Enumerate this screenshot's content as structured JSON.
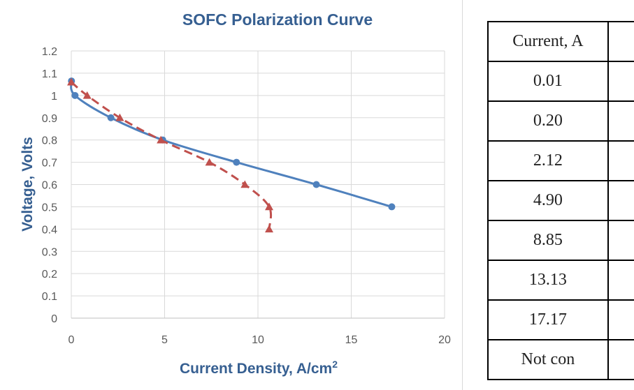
{
  "chart_data": {
    "type": "line",
    "title": "SOFC Polarization Curve",
    "xlabel": "Current Density, A/cm",
    "xlabel_superscript": "2",
    "ylabel": "Voltage, Volts",
    "xlim": [
      0,
      20
    ],
    "ylim": [
      0,
      1.2
    ],
    "x_ticks": [
      "0",
      "5",
      "10",
      "15",
      "20"
    ],
    "y_ticks": [
      "0",
      "0.1",
      "0.2",
      "0.3",
      "0.4",
      "0.5",
      "0.6",
      "0.7",
      "0.8",
      "0.9",
      "1",
      "1.1",
      "1.2"
    ],
    "grid": true,
    "series": [
      {
        "color": "#4f81bd",
        "marker": "circle",
        "line_style": "solid",
        "x": [
          0.01,
          0.2,
          2.12,
          4.9,
          8.85,
          13.13,
          17.17
        ],
        "y": [
          1.065,
          1.0,
          0.9,
          0.8,
          0.7,
          0.6,
          0.5
        ]
      },
      {
        "color": "#c0504d",
        "marker": "triangle",
        "line_style": "dashed",
        "x": [
          0.0,
          0.85,
          2.6,
          4.8,
          7.4,
          9.3,
          10.6,
          10.6
        ],
        "y": [
          1.06,
          1.0,
          0.9,
          0.8,
          0.7,
          0.6,
          0.5,
          0.4
        ]
      }
    ]
  },
  "table": {
    "header": "Current, A",
    "rows": [
      "0.01",
      "0.20",
      "2.12",
      "4.90",
      "8.85",
      "13.13",
      "17.17",
      "Not con"
    ]
  }
}
